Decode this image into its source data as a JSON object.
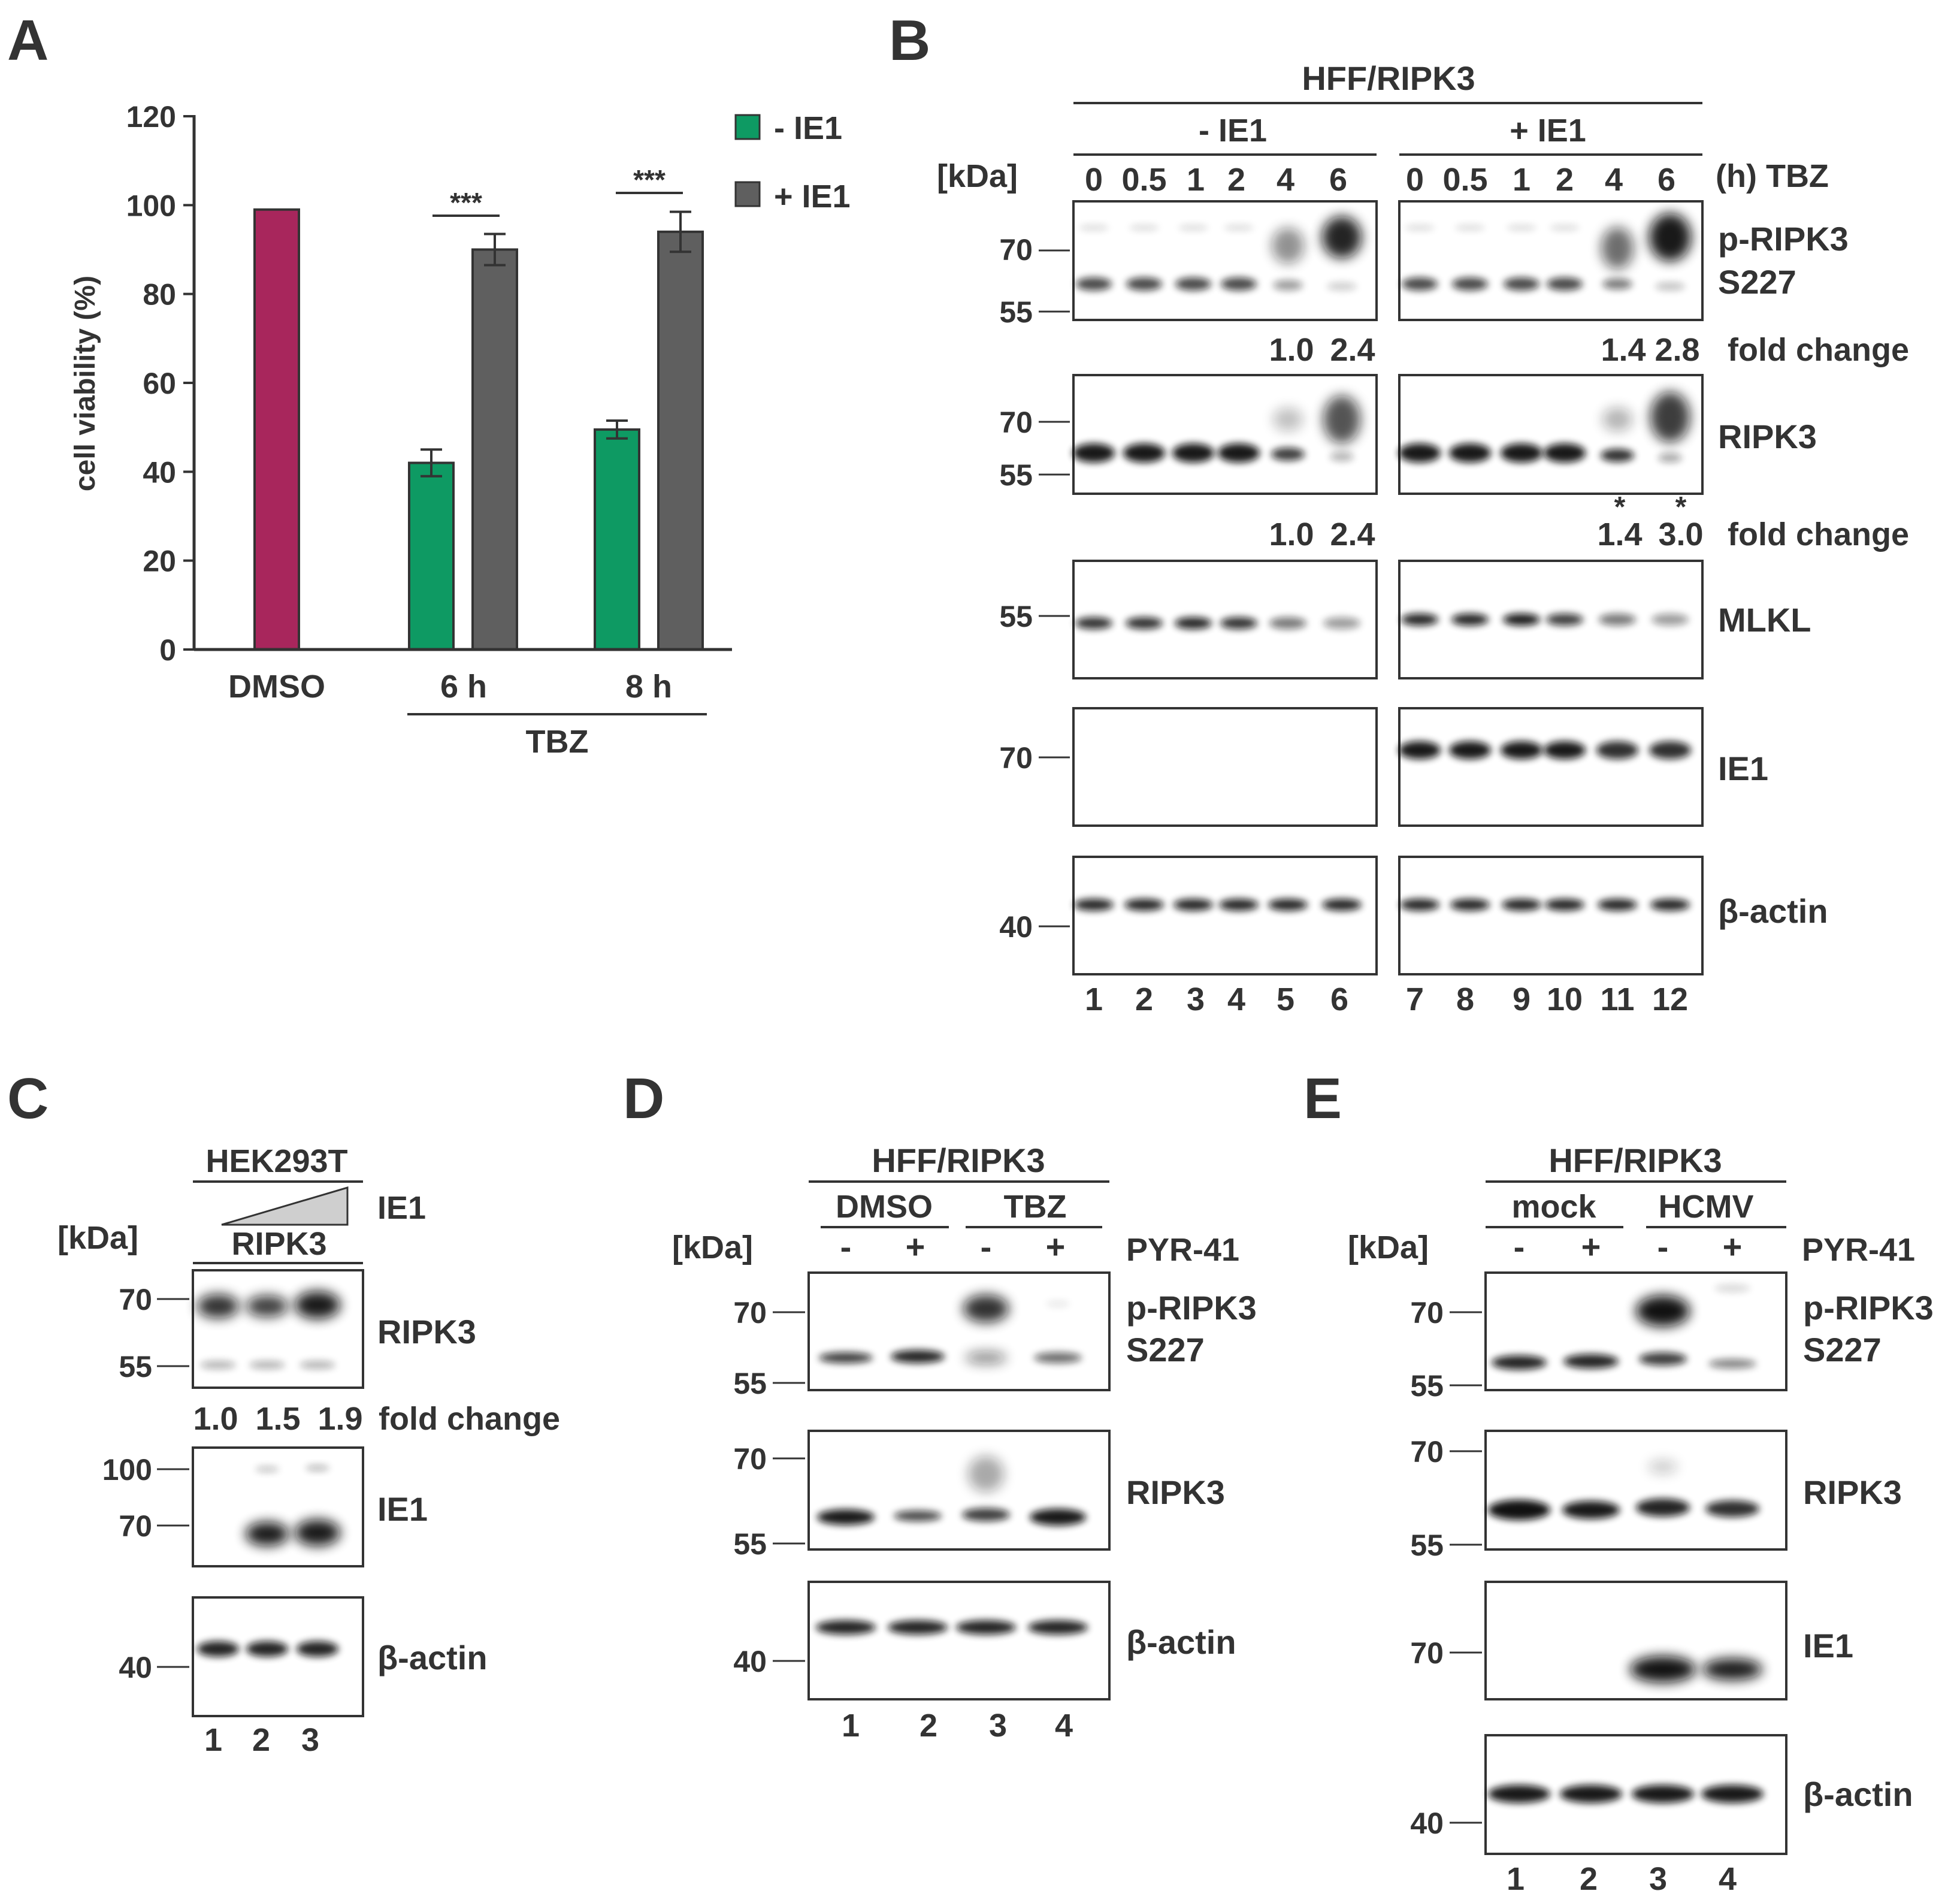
{
  "panels": {
    "A": {
      "letter": "A",
      "chart_data": {
        "type": "bar",
        "ylabel": "cell viability (%)",
        "ylim": [
          0,
          120
        ],
        "yticks": [
          "0",
          "20",
          "40",
          "60",
          "80",
          "100",
          "120"
        ],
        "categories": [
          "DMSO",
          "6 h",
          "8 h"
        ],
        "group_label": "TBZ",
        "legend": [
          "- IE1",
          "+ IE1"
        ],
        "legend_placement": "top-right",
        "series": [
          {
            "name": "DMSO",
            "color": "#a8265c",
            "values": [
              99,
              null,
              null
            ]
          },
          {
            "name": "- IE1",
            "color": "#0e9a63",
            "values": [
              null,
              42,
              49.5
            ],
            "errors": [
              null,
              3,
              2
            ]
          },
          {
            "name": "+ IE1",
            "color": "#5f5f5f",
            "values": [
              null,
              90,
              94
            ],
            "errors": [
              null,
              3.5,
              4.5
            ]
          }
        ],
        "significance": [
          "***",
          "***"
        ]
      }
    },
    "B": {
      "letter": "B",
      "cell_line": "HFF/RIPK3",
      "group_minus": "- IE1",
      "group_plus": "+ IE1",
      "kda_label": "[kDa]",
      "time_label": "(h) TBZ",
      "timepoints": [
        "0",
        "0.5",
        "1",
        "2",
        "4",
        "6"
      ],
      "lanes": [
        "1",
        "2",
        "3",
        "4",
        "5",
        "6",
        "7",
        "8",
        "9",
        "10",
        "11",
        "12"
      ],
      "blots": {
        "pripk3": {
          "label1": "p-RIPK3",
          "label2": "S227",
          "markers": [
            "70",
            "55"
          ]
        },
        "ripk3": {
          "label": "RIPK3",
          "markers": [
            "70",
            "55"
          ]
        },
        "mlkl": {
          "label": "MLKL",
          "markers": [
            "55"
          ]
        },
        "ie1": {
          "label": "IE1",
          "markers": [
            "70"
          ]
        },
        "actin": {
          "label": "β-actin",
          "markers": [
            "40"
          ]
        }
      },
      "fold1": {
        "left": [
          "1.0",
          "2.4"
        ],
        "right": [
          "1.4",
          "2.8"
        ],
        "label": "fold change"
      },
      "fold2": {
        "left": [
          "1.0",
          "2.4"
        ],
        "right": [
          "1.4",
          "3.0"
        ],
        "label": "fold change",
        "stars": [
          "*",
          "*"
        ]
      }
    },
    "C": {
      "letter": "C",
      "cell_line": "HEK293T",
      "ie1_label": "IE1",
      "ripk3_label": "RIPK3",
      "kda_label": "[kDa]",
      "blots": {
        "ripk3": {
          "label": "RIPK3",
          "markers": [
            "70",
            "55"
          ]
        },
        "ie1": {
          "label": "IE1",
          "markers": [
            "100",
            "70"
          ]
        },
        "actin": {
          "label": "β-actin",
          "markers": [
            "40"
          ]
        }
      },
      "fold": {
        "values": [
          "1.0",
          "1.5",
          "1.9"
        ],
        "label": "fold change"
      },
      "lanes": [
        "1",
        "2",
        "3"
      ]
    },
    "D": {
      "letter": "D",
      "cell_line": "HFF/RIPK3",
      "cond1": "DMSO",
      "cond2": "TBZ",
      "kda_label": "[kDa]",
      "treatment": "PYR-41",
      "signs": [
        "-",
        "+",
        "-",
        "+"
      ],
      "blots": {
        "pripk3": {
          "label1": "p-RIPK3",
          "label2": "S227",
          "markers": [
            "70",
            "55"
          ]
        },
        "ripk3": {
          "label": "RIPK3",
          "markers": [
            "70",
            "55"
          ]
        },
        "actin": {
          "label": "β-actin",
          "markers": [
            "40"
          ]
        }
      },
      "lanes": [
        "1",
        "2",
        "3",
        "4"
      ]
    },
    "E": {
      "letter": "E",
      "cell_line": "HFF/RIPK3",
      "cond1": "mock",
      "cond2": "HCMV",
      "kda_label": "[kDa]",
      "treatment": "PYR-41",
      "signs": [
        "-",
        "+",
        "-",
        "+"
      ],
      "blots": {
        "pripk3": {
          "label1": "p-RIPK3",
          "label2": "S227",
          "markers": [
            "70",
            "55"
          ]
        },
        "ripk3": {
          "label": "RIPK3",
          "markers": [
            "70",
            "55"
          ]
        },
        "ie1": {
          "label": "IE1",
          "markers": [
            "70"
          ]
        },
        "actin": {
          "label": "β-actin",
          "markers": [
            "40"
          ]
        }
      },
      "lanes": [
        "1",
        "2",
        "3",
        "4"
      ]
    }
  }
}
